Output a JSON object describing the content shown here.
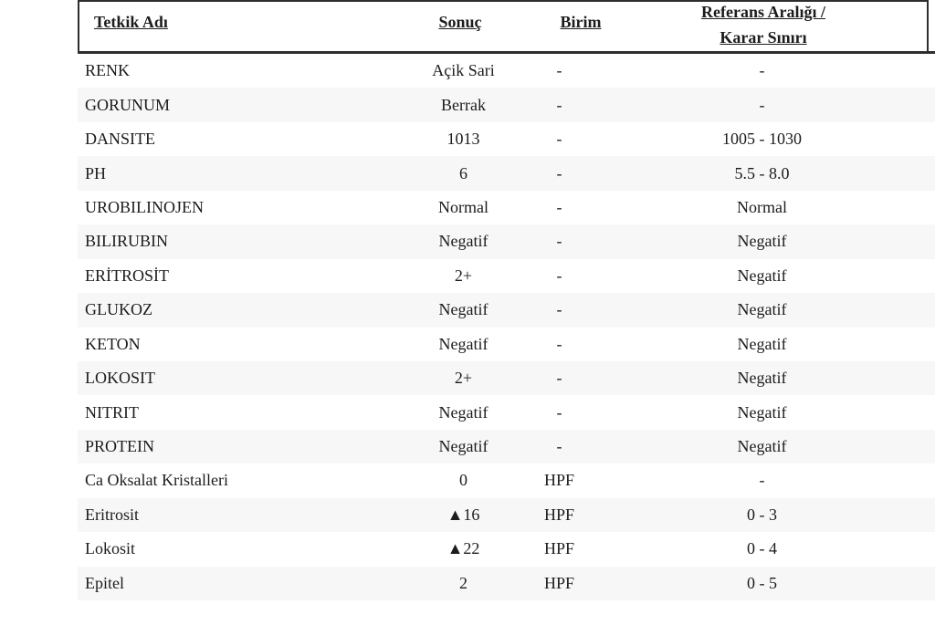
{
  "table": {
    "header": {
      "name": "Tetkik Adı",
      "result": "Sonuç",
      "unit": "Birim",
      "ref_line1": "Referans Aralığı /",
      "ref_line2": "Karar Sınırı"
    },
    "rows": [
      {
        "name": "RENK",
        "result": "Açik Sari",
        "unit": "-",
        "ref": "-"
      },
      {
        "name": "GORUNUM",
        "result": "Berrak",
        "unit": "-",
        "ref": "-"
      },
      {
        "name": "DANSITE",
        "result": "1013",
        "unit": "-",
        "ref": "1005 - 1030"
      },
      {
        "name": "PH",
        "result": "6",
        "unit": "-",
        "ref": "5.5 - 8.0"
      },
      {
        "name": "UROBILINOJEN",
        "result": "Normal",
        "unit": "-",
        "ref": "Normal"
      },
      {
        "name": "BILIRUBIN",
        "result": "Negatif",
        "unit": "-",
        "ref": "Negatif"
      },
      {
        "name": "ERİTROSİT",
        "result": "2+",
        "unit": "-",
        "ref": "Negatif"
      },
      {
        "name": "GLUKOZ",
        "result": "Negatif",
        "unit": "-",
        "ref": "Negatif"
      },
      {
        "name": "KETON",
        "result": "Negatif",
        "unit": "-",
        "ref": "Negatif"
      },
      {
        "name": "LOKOSIT",
        "result": "2+",
        "unit": "-",
        "ref": "Negatif"
      },
      {
        "name": "NITRIT",
        "result": "Negatif",
        "unit": "-",
        "ref": "Negatif"
      },
      {
        "name": "PROTEIN",
        "result": "Negatif",
        "unit": "-",
        "ref": "Negatif"
      },
      {
        "name": "Ca Oksalat Kristalleri",
        "result": "0",
        "unit": "HPF",
        "ref": "-"
      },
      {
        "name": "Eritrosit",
        "result": "▲16",
        "unit": "HPF",
        "ref": "0 - 3"
      },
      {
        "name": "Lokosit",
        "result": "▲22",
        "unit": "HPF",
        "ref": "0 - 4"
      },
      {
        "name": "Epitel",
        "result": "2",
        "unit": "HPF",
        "ref": "0 - 5"
      }
    ],
    "colors": {
      "stripe": "#f7f7f7",
      "text": "#1c1c1c",
      "border": "#2e2e2e"
    }
  }
}
